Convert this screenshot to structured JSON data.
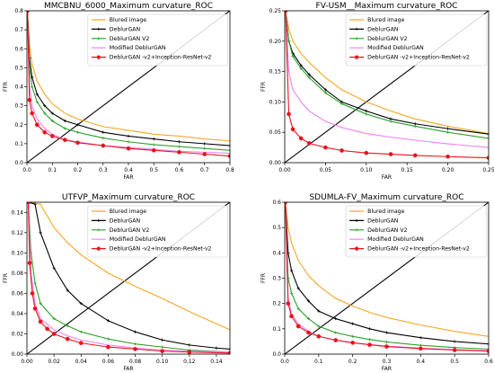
{
  "chart_data": [
    {
      "type": "line",
      "title": "MMCBNU_6000_Maximum curvature_ROC",
      "xlabel": "FAR",
      "ylabel": "FFR",
      "xlim": [
        0,
        0.8
      ],
      "ylim": [
        0,
        0.8
      ],
      "xticks": [
        "0.0",
        "0.1",
        "0.2",
        "0.3",
        "0.4",
        "0.5",
        "0.6",
        "0.7",
        "0.8"
      ],
      "yticks": [
        "0.0",
        "0.1",
        "0.2",
        "0.3",
        "0.4",
        "0.5",
        "0.6",
        "0.7",
        "0.8"
      ],
      "reference_line": "diagonal",
      "legend": "top-right",
      "series": [
        {
          "name": "Blured image",
          "color": "#f5a623",
          "x": [
            0.002,
            0.01,
            0.02,
            0.04,
            0.07,
            0.1,
            0.15,
            0.2,
            0.3,
            0.4,
            0.5,
            0.6,
            0.7,
            0.8
          ],
          "values": [
            0.8,
            0.62,
            0.52,
            0.43,
            0.36,
            0.31,
            0.26,
            0.23,
            0.19,
            0.17,
            0.15,
            0.14,
            0.125,
            0.115
          ]
        },
        {
          "name": "DeblurGAN",
          "color": "#000000",
          "x": [
            0.002,
            0.01,
            0.02,
            0.04,
            0.07,
            0.1,
            0.15,
            0.2,
            0.3,
            0.4,
            0.5,
            0.6,
            0.7,
            0.8
          ],
          "values": [
            0.8,
            0.55,
            0.45,
            0.36,
            0.3,
            0.26,
            0.22,
            0.2,
            0.16,
            0.14,
            0.125,
            0.11,
            0.1,
            0.09
          ]
        },
        {
          "name": "DeblurGAN V2",
          "color": "#2ca02c",
          "x": [
            0.002,
            0.01,
            0.02,
            0.04,
            0.07,
            0.1,
            0.15,
            0.2,
            0.3,
            0.4,
            0.5,
            0.6,
            0.7,
            0.8
          ],
          "values": [
            0.8,
            0.5,
            0.4,
            0.32,
            0.26,
            0.22,
            0.18,
            0.16,
            0.13,
            0.11,
            0.095,
            0.085,
            0.075,
            0.065
          ]
        },
        {
          "name": "Modified DeblurGAN",
          "color": "#ee82ee",
          "x": [
            0.002,
            0.01,
            0.02,
            0.04,
            0.07,
            0.1,
            0.15,
            0.2,
            0.3,
            0.4,
            0.5,
            0.6,
            0.7,
            0.8
          ],
          "values": [
            0.8,
            0.4,
            0.3,
            0.23,
            0.18,
            0.15,
            0.12,
            0.11,
            0.09,
            0.08,
            0.07,
            0.06,
            0.055,
            0.05
          ]
        },
        {
          "name": "DeblurGAN -v2+Inception-ResNet-v2",
          "color": "#e8121d",
          "x": [
            0.002,
            0.01,
            0.02,
            0.04,
            0.07,
            0.1,
            0.15,
            0.2,
            0.3,
            0.4,
            0.5,
            0.6,
            0.7,
            0.8
          ],
          "values": [
            0.8,
            0.33,
            0.26,
            0.2,
            0.16,
            0.14,
            0.12,
            0.105,
            0.09,
            0.075,
            0.065,
            0.055,
            0.045,
            0.035
          ]
        }
      ]
    },
    {
      "type": "line",
      "title": "FV-USM__Maximum curvature_ROC",
      "xlabel": "FAR",
      "ylabel": "FFR",
      "xlim": [
        0,
        0.25
      ],
      "ylim": [
        0,
        0.25
      ],
      "xticks": [
        "0.00",
        "0.05",
        "0.10",
        "0.15",
        "0.20",
        "0.25"
      ],
      "yticks": [
        "0.00",
        "0.05",
        "0.10",
        "0.15",
        "0.20",
        "0.25"
      ],
      "reference_line": "diagonal",
      "legend": "top-right",
      "series": [
        {
          "name": "Blured image",
          "color": "#f5a623",
          "x": [
            0.001,
            0.005,
            0.01,
            0.02,
            0.03,
            0.05,
            0.07,
            0.1,
            0.13,
            0.16,
            0.2,
            0.25
          ],
          "values": [
            0.25,
            0.22,
            0.2,
            0.18,
            0.165,
            0.14,
            0.12,
            0.1,
            0.085,
            0.072,
            0.06,
            0.048
          ]
        },
        {
          "name": "DeblurGAN",
          "color": "#000000",
          "x": [
            0.001,
            0.005,
            0.01,
            0.02,
            0.03,
            0.05,
            0.07,
            0.1,
            0.13,
            0.16,
            0.2,
            0.25
          ],
          "values": [
            0.25,
            0.2,
            0.18,
            0.16,
            0.145,
            0.12,
            0.1,
            0.085,
            0.072,
            0.064,
            0.056,
            0.047
          ]
        },
        {
          "name": "DeblurGAN V2",
          "color": "#2ca02c",
          "x": [
            0.001,
            0.005,
            0.01,
            0.02,
            0.03,
            0.05,
            0.07,
            0.1,
            0.13,
            0.16,
            0.2,
            0.25
          ],
          "values": [
            0.25,
            0.2,
            0.175,
            0.155,
            0.14,
            0.115,
            0.097,
            0.08,
            0.068,
            0.06,
            0.05,
            0.04
          ]
        },
        {
          "name": "Modified DeblurGAN",
          "color": "#ee82ee",
          "x": [
            0.001,
            0.005,
            0.01,
            0.02,
            0.03,
            0.05,
            0.07,
            0.1,
            0.13,
            0.16,
            0.2,
            0.25
          ],
          "values": [
            0.25,
            0.15,
            0.12,
            0.1,
            0.085,
            0.068,
            0.058,
            0.048,
            0.042,
            0.037,
            0.031,
            0.025
          ]
        },
        {
          "name": "DeblurGAN -v2+Inception-ResNet-v2",
          "color": "#e8121d",
          "x": [
            0.001,
            0.005,
            0.01,
            0.02,
            0.03,
            0.05,
            0.07,
            0.1,
            0.13,
            0.16,
            0.2,
            0.25
          ],
          "values": [
            0.25,
            0.08,
            0.055,
            0.04,
            0.032,
            0.025,
            0.02,
            0.016,
            0.014,
            0.012,
            0.01,
            0.008
          ]
        }
      ]
    },
    {
      "type": "line",
      "title": "UTFVP_Maximum curvature_ROC",
      "xlabel": "FAR",
      "ylabel": "FFR",
      "xlim": [
        0,
        0.15
      ],
      "ylim": [
        0,
        0.15
      ],
      "xticks": [
        "0.00",
        "0.02",
        "0.04",
        "0.06",
        "0.08",
        "0.10",
        "0.12",
        "0.14"
      ],
      "yticks": [
        "0.00",
        "0.02",
        "0.04",
        "0.06",
        "0.08",
        "0.10",
        "0.12",
        "0.14"
      ],
      "reference_line": "diagonal",
      "legend": "top-right",
      "series": [
        {
          "name": "Blured image",
          "color": "#f5a623",
          "x": [
            0.001,
            0.01,
            0.02,
            0.03,
            0.04,
            0.06,
            0.08,
            0.1,
            0.12,
            0.14,
            0.15
          ],
          "values": [
            0.15,
            0.148,
            0.125,
            0.11,
            0.098,
            0.08,
            0.067,
            0.055,
            0.042,
            0.03,
            0.024
          ]
        },
        {
          "name": "DeblurGAN",
          "color": "#000000",
          "x": [
            0.001,
            0.006,
            0.01,
            0.02,
            0.03,
            0.04,
            0.06,
            0.08,
            0.1,
            0.12,
            0.14,
            0.15
          ],
          "values": [
            0.15,
            0.148,
            0.12,
            0.085,
            0.063,
            0.05,
            0.033,
            0.022,
            0.014,
            0.009,
            0.006,
            0.005
          ]
        },
        {
          "name": "DeblurGAN V2",
          "color": "#2ca02c",
          "x": [
            0.001,
            0.003,
            0.006,
            0.01,
            0.02,
            0.03,
            0.04,
            0.06,
            0.08,
            0.1,
            0.12,
            0.15
          ],
          "values": [
            0.15,
            0.1,
            0.07,
            0.05,
            0.035,
            0.028,
            0.022,
            0.015,
            0.01,
            0.007,
            0.004,
            0.002
          ]
        },
        {
          "name": "Modified DeblurGAN",
          "color": "#ee82ee",
          "x": [
            0.001,
            0.003,
            0.006,
            0.01,
            0.02,
            0.03,
            0.04,
            0.06,
            0.08,
            0.1,
            0.12,
            0.15
          ],
          "values": [
            0.15,
            0.08,
            0.05,
            0.035,
            0.024,
            0.018,
            0.014,
            0.009,
            0.006,
            0.004,
            0.003,
            0.002
          ]
        },
        {
          "name": "DeblurGAN -v2+Inception-ResNet-v2",
          "color": "#e8121d",
          "x": [
            0.001,
            0.002,
            0.004,
            0.006,
            0.01,
            0.015,
            0.02,
            0.03,
            0.04,
            0.06,
            0.08,
            0.1,
            0.12,
            0.15
          ],
          "values": [
            0.15,
            0.09,
            0.06,
            0.045,
            0.032,
            0.025,
            0.02,
            0.015,
            0.011,
            0.007,
            0.005,
            0.003,
            0.002,
            0.001
          ]
        }
      ]
    },
    {
      "type": "line",
      "title": "SDUMLA-FV_Maximum curvature_ROC",
      "xlabel": "FAR",
      "ylabel": "FFR",
      "xlim": [
        0,
        0.6
      ],
      "ylim": [
        0,
        0.6
      ],
      "xticks": [
        "0.0",
        "0.1",
        "0.2",
        "0.3",
        "0.4",
        "0.5",
        "0.6"
      ],
      "yticks": [
        "0.0",
        "0.1",
        "0.2",
        "0.3",
        "0.4",
        "0.5",
        "0.6"
      ],
      "reference_line": "diagonal",
      "legend": "top-right",
      "series": [
        {
          "name": "Blured image",
          "color": "#f5a623",
          "x": [
            0.002,
            0.01,
            0.02,
            0.04,
            0.07,
            0.1,
            0.15,
            0.2,
            0.25,
            0.3,
            0.4,
            0.5,
            0.6
          ],
          "values": [
            0.6,
            0.5,
            0.44,
            0.37,
            0.31,
            0.27,
            0.22,
            0.19,
            0.165,
            0.145,
            0.115,
            0.09,
            0.07
          ]
        },
        {
          "name": "DeblurGAN",
          "color": "#000000",
          "x": [
            0.002,
            0.01,
            0.02,
            0.04,
            0.07,
            0.1,
            0.15,
            0.2,
            0.25,
            0.3,
            0.4,
            0.5,
            0.6
          ],
          "values": [
            0.6,
            0.4,
            0.33,
            0.26,
            0.21,
            0.17,
            0.14,
            0.12,
            0.1,
            0.085,
            0.065,
            0.05,
            0.04
          ]
        },
        {
          "name": "DeblurGAN V2",
          "color": "#2ca02c",
          "x": [
            0.002,
            0.01,
            0.02,
            0.04,
            0.07,
            0.1,
            0.15,
            0.2,
            0.25,
            0.3,
            0.4,
            0.5,
            0.6
          ],
          "values": [
            0.6,
            0.3,
            0.24,
            0.18,
            0.14,
            0.11,
            0.085,
            0.07,
            0.058,
            0.048,
            0.035,
            0.026,
            0.02
          ]
        },
        {
          "name": "Modified DeblurGAN",
          "color": "#ee82ee",
          "x": [
            0.002,
            0.01,
            0.02,
            0.04,
            0.07,
            0.1,
            0.15,
            0.2,
            0.25,
            0.3,
            0.4,
            0.5,
            0.6
          ],
          "values": [
            0.6,
            0.22,
            0.16,
            0.12,
            0.09,
            0.07,
            0.055,
            0.045,
            0.038,
            0.032,
            0.024,
            0.018,
            0.014
          ]
        },
        {
          "name": "DeblurGAN -v2+Inception-ResNet-v2",
          "color": "#e8121d",
          "x": [
            0.002,
            0.01,
            0.02,
            0.04,
            0.07,
            0.1,
            0.15,
            0.2,
            0.25,
            0.3,
            0.4,
            0.5,
            0.6
          ],
          "values": [
            0.6,
            0.2,
            0.15,
            0.11,
            0.085,
            0.07,
            0.055,
            0.045,
            0.037,
            0.03,
            0.022,
            0.016,
            0.012
          ]
        }
      ]
    }
  ]
}
